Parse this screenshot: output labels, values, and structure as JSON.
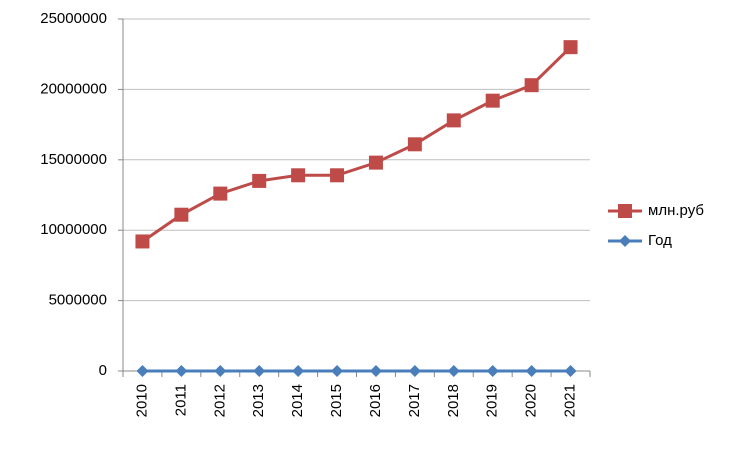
{
  "chart_data": {
    "type": "line",
    "categories": [
      "2010",
      "2011",
      "2012",
      "2013",
      "2014",
      "2015",
      "2016",
      "2017",
      "2018",
      "2019",
      "2020",
      "2021"
    ],
    "series": [
      {
        "name": "млн.руб",
        "color": "#be4b48",
        "marker": "square",
        "values": [
          9200000,
          11100000,
          12600000,
          13500000,
          13900000,
          13900000,
          14800000,
          16100000,
          17800000,
          19200000,
          20300000,
          23000000
        ]
      },
      {
        "name": "Год",
        "color": "#4a7ebb",
        "marker": "diamond",
        "values": [
          2010,
          2011,
          2012,
          2013,
          2014,
          2015,
          2016,
          2017,
          2018,
          2019,
          2020,
          2021
        ]
      }
    ],
    "ylim": [
      0,
      25000000
    ],
    "yticks": [
      0,
      5000000,
      10000000,
      15000000,
      20000000,
      25000000
    ],
    "grid": true,
    "legend": "right"
  }
}
